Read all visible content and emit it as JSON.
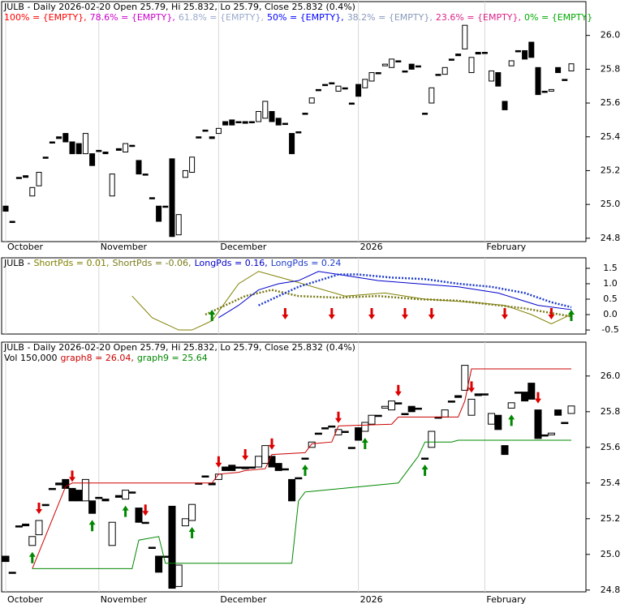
{
  "chart_data": [
    {
      "type": "candlestick",
      "title": "JULB - Daily 2026-02-20 Open 25.79, Hi 25.832, Lo 25.79, Close 25.832 (0.4%)",
      "legend": [
        {
          "name": "100% = {EMPTY},",
          "color": "#ff0000"
        },
        {
          "name": "78.6% = {EMPTY},",
          "color": "#cc00cc"
        },
        {
          "name": "61.8% = {EMPTY},",
          "color": "#9aaacc"
        },
        {
          "name": "50% = {EMPTY},",
          "color": "#0000ff"
        },
        {
          "name": "38.2% = {EMPTY},",
          "color": "#8899bb"
        },
        {
          "name": "23.6% = {EMPTY},",
          "color": "#dd2288"
        },
        {
          "name": "0% = {EMPTY}",
          "color": "#00aa00"
        }
      ],
      "open": [
        24.99,
        24.9,
        25.16,
        25.17,
        25.05,
        25.11,
        25.28,
        25.37,
        25.4,
        25.42,
        25.37,
        25.36,
        25.3,
        25.3,
        25.32,
        25.31,
        25.05,
        25.33,
        25.31,
        25.35,
        25.26,
        25.18,
        25.04,
        24.99,
        24.99,
        25.27,
        24.82,
        25.16,
        25.19,
        25.4,
        25.44,
        25.4,
        25.42,
        25.49,
        25.5,
        25.49,
        25.49,
        25.49,
        25.49,
        25.51,
        25.55,
        25.51,
        25.48,
        25.42,
        25.43,
        25.54,
        25.6,
        25.68,
        25.71,
        25.72,
        25.67,
        25.69,
        25.6,
        25.71,
        25.69,
        25.73,
        25.78,
        25.82,
        25.81,
        25.85,
        25.79,
        25.83,
        25.82,
        25.54,
        25.6,
        25.77,
        25.77,
        25.86,
        25.89,
        25.92,
        25.78,
        25.9,
        25.9,
        25.73,
        25.78,
        25.61,
        25.82,
        25.91,
        25.91,
        25.96,
        25.81,
        25.67,
        25.67,
        25.81,
        25.74,
        25.79
      ],
      "close": [
        24.96,
        24.9,
        25.16,
        25.16,
        25.1,
        25.19,
        25.28,
        25.37,
        25.39,
        25.37,
        25.3,
        25.3,
        25.42,
        25.23,
        25.32,
        25.3,
        25.18,
        25.32,
        25.36,
        25.35,
        25.18,
        25.18,
        25.04,
        24.9,
        24.99,
        24.81,
        24.94,
        25.2,
        25.28,
        25.4,
        25.44,
        25.39,
        25.45,
        25.47,
        25.47,
        25.49,
        25.48,
        25.49,
        25.55,
        25.61,
        25.49,
        25.47,
        25.48,
        25.3,
        25.43,
        25.54,
        25.63,
        25.68,
        25.71,
        25.72,
        25.7,
        25.69,
        25.6,
        25.64,
        25.74,
        25.78,
        25.78,
        25.83,
        25.86,
        25.85,
        25.79,
        25.8,
        25.82,
        25.54,
        25.69,
        25.77,
        25.81,
        25.86,
        25.88,
        26.06,
        25.87,
        25.89,
        25.9,
        25.79,
        25.7,
        25.56,
        25.85,
        25.91,
        25.86,
        25.87,
        25.65,
        25.67,
        25.68,
        25.78,
        25.74,
        25.832
      ],
      "up_color": "#ffffff",
      "down_color": "#000000",
      "xlim": [
        0,
        85
      ],
      "xticks": [
        {
          "value": 0,
          "label": "October"
        },
        {
          "value": 14,
          "label": "November"
        },
        {
          "value": 32,
          "label": "December"
        },
        {
          "value": 53,
          "label": "2026"
        },
        {
          "value": 72,
          "label": "February"
        }
      ],
      "ylim": [
        24.78,
        26.2
      ],
      "yticks": [
        {
          "value": 24.8,
          "label": "24.8"
        },
        {
          "value": 25,
          "label": "25.0"
        },
        25.2,
        25.4,
        25.6,
        25.8,
        {
          "value": 26,
          "label": "26.0"
        }
      ],
      "grid": "x"
    },
    {
      "type": "line",
      "title": "JULB -",
      "series": [
        {
          "name": "ShortPds = 0.01,",
          "color": "#808000",
          "style": "solid",
          "x": [
            19,
            22,
            26,
            28,
            31,
            33,
            35,
            38,
            43,
            51,
            57,
            63,
            70,
            75,
            79,
            82,
            85
          ],
          "values": [
            0.6,
            -0.1,
            -0.5,
            -0.5,
            -0.2,
            0.4,
            1.0,
            1.4,
            1.1,
            0.6,
            0.7,
            0.5,
            0.4,
            0.3,
            0.0,
            -0.3,
            0.01
          ]
        },
        {
          "name": "ShortPds = -0.06,",
          "color": "#7a7a1a",
          "style": "dotted",
          "x": [
            30,
            33,
            36,
            40,
            44,
            50,
            56,
            62,
            68,
            74,
            78,
            82,
            85
          ],
          "values": [
            0.0,
            0.3,
            0.6,
            0.8,
            0.6,
            0.55,
            0.6,
            0.5,
            0.45,
            0.3,
            0.2,
            0.05,
            -0.06
          ]
        },
        {
          "name": "LongPds = 0.16,",
          "color": "#0000cc",
          "style": "solid",
          "x": [
            32,
            35,
            38,
            41,
            44,
            47,
            50,
            56,
            62,
            68,
            74,
            80,
            85
          ],
          "values": [
            -0.1,
            0.3,
            0.8,
            1.0,
            1.1,
            1.4,
            1.3,
            1.1,
            1.0,
            0.9,
            0.7,
            0.3,
            0.16
          ]
        },
        {
          "name": "LongPds = 0.24",
          "color": "#1e3ccc",
          "style": "dotted",
          "x": [
            38,
            41,
            44,
            47,
            50,
            53,
            58,
            63,
            68,
            73,
            78,
            82,
            85
          ],
          "values": [
            0.3,
            0.6,
            0.9,
            1.1,
            1.3,
            1.3,
            1.2,
            1.15,
            1.0,
            0.9,
            0.7,
            0.4,
            0.24
          ]
        }
      ],
      "buy_signals": [
        31,
        85
      ],
      "sell_signals": [
        42,
        49,
        55,
        60,
        64,
        75,
        82
      ],
      "xlim": [
        0,
        85
      ],
      "xticks": [
        {
          "value": 0,
          "label": "October"
        },
        {
          "value": 14,
          "label": "November"
        },
        {
          "value": 32,
          "label": "December"
        },
        {
          "value": 53,
          "label": "2026"
        },
        {
          "value": 72,
          "label": "February"
        }
      ],
      "ylim": [
        -0.63,
        1.84
      ],
      "yticks": [
        -0.5,
        {
          "value": 0,
          "label": "0.0"
        },
        0.5,
        {
          "value": 1,
          "label": "1.0"
        },
        1.5
      ],
      "grid": "x"
    },
    {
      "type": "candlestick",
      "title": "JULB - Daily 2026-02-20 Open 25.79, Hi 25.832, Lo 25.79, Close 25.832 (0.4%)",
      "subtitle": "Vol 150,000",
      "series": [
        {
          "name": "graph8 = 26.04,",
          "color": "#cc0000",
          "x": [
            4,
            9,
            10,
            31,
            32,
            35,
            36,
            39,
            40,
            45,
            46,
            49,
            50,
            58,
            59,
            68,
            69,
            70,
            85
          ],
          "values": [
            24.92,
            25.38,
            25.4,
            25.4,
            25.45,
            25.46,
            25.47,
            25.48,
            25.56,
            25.57,
            25.62,
            25.63,
            25.72,
            25.73,
            25.77,
            25.77,
            25.86,
            26.04,
            26.04
          ]
        },
        {
          "name": "graph9 = 25.64",
          "color": "#008800",
          "x": [
            4,
            19,
            20,
            23,
            24,
            43,
            44,
            45,
            59,
            60,
            62,
            63,
            67,
            68,
            85
          ],
          "values": [
            24.92,
            24.92,
            25.08,
            25.1,
            24.95,
            24.95,
            25.3,
            25.35,
            25.4,
            25.45,
            25.55,
            25.63,
            25.63,
            25.64,
            25.64
          ]
        }
      ],
      "buy_signals": [
        4,
        13,
        18,
        28,
        45,
        54,
        63,
        76
      ],
      "sell_signals": [
        5,
        10,
        21,
        32,
        36,
        40,
        50,
        59,
        70,
        80
      ],
      "xlim": [
        0,
        85
      ],
      "xticks": [
        {
          "value": 0,
          "label": "October"
        },
        {
          "value": 14,
          "label": "November"
        },
        {
          "value": 32,
          "label": "December"
        },
        {
          "value": 53,
          "label": "2026"
        },
        {
          "value": 72,
          "label": "February"
        }
      ],
      "ylim": [
        24.79,
        26.19
      ],
      "yticks": [
        {
          "value": 24.8,
          "label": "24.8"
        },
        {
          "value": 25,
          "label": "25.0"
        },
        25.2,
        25.4,
        25.6,
        25.8,
        {
          "value": 26,
          "label": "26.0"
        }
      ],
      "grid": "x"
    }
  ]
}
